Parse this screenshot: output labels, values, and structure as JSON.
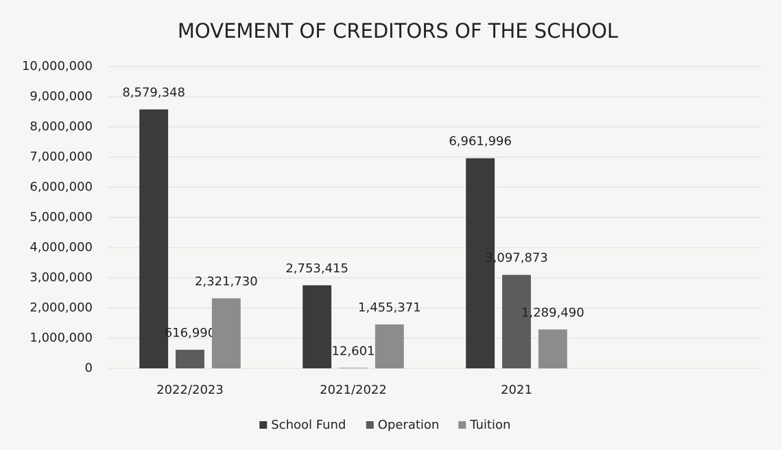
{
  "chart_data": {
    "type": "bar",
    "title": "MOVEMENT OF CREDITORS OF THE SCHOOL",
    "categories": [
      "2022/2023",
      "2021/2022",
      "2021",
      null
    ],
    "series": [
      {
        "name": "School Fund",
        "color": "#3b3b3b",
        "values": [
          8579348,
          2753415,
          6961996,
          null
        ],
        "value_labels": [
          "8,579,348",
          "2,753,415",
          "6,961,996",
          null
        ]
      },
      {
        "name": "Operation",
        "color": "#5c5c5c",
        "values": [
          616990,
          12601,
          3097873,
          null
        ],
        "value_labels": [
          "616,990",
          "12,601",
          "3,097,873",
          null
        ]
      },
      {
        "name": "Tuition",
        "color": "#8c8c8c",
        "values": [
          2321730,
          1455371,
          1289490,
          null
        ],
        "value_labels": [
          "2,321,730",
          "1,455,371",
          "1,289,490",
          null
        ]
      }
    ],
    "ylim": [
      0,
      10000000
    ],
    "yticks": [
      0,
      {
        "value": 1000000,
        "label": "1,000,000"
      },
      {
        "value": 2000000,
        "label": "2,000,000"
      },
      {
        "value": 3000000,
        "label": "3,000,000"
      },
      {
        "value": 4000000,
        "label": "4,000,000"
      },
      {
        "value": 5000000,
        "label": "5,000,000"
      },
      {
        "value": 6000000,
        "label": "6,000,000"
      },
      {
        "value": 7000000,
        "label": "7,000,000"
      },
      {
        "value": 8000000,
        "label": "8,000,000"
      },
      {
        "value": 9000000,
        "label": "9,000,000"
      },
      {
        "value": 10000000,
        "label": "10,000,000"
      }
    ],
    "grid": true,
    "legend": "bottom"
  }
}
